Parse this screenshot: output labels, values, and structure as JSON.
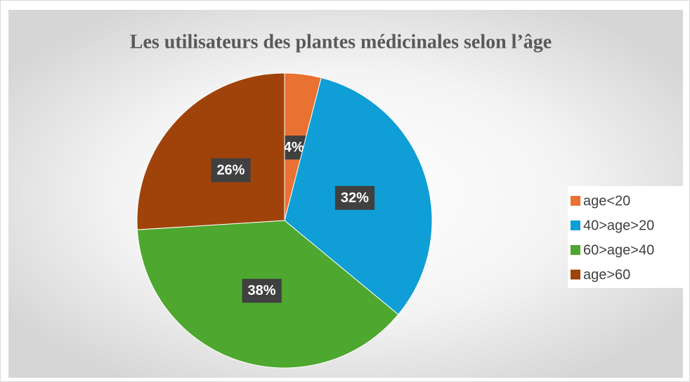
{
  "chart_data": {
    "type": "pie",
    "title": "Les utilisateurs des plantes médicinales selon l’âge",
    "categories": [
      "age<20",
      "40>age>20",
      "60>age>40",
      "age>60"
    ],
    "values": [
      4,
      32,
      38,
      26
    ],
    "value_labels": [
      "4%",
      "32%",
      "38%",
      "26%"
    ],
    "colors": [
      "#e97132",
      "#0f9ed5",
      "#4ea72e",
      "#a0430a"
    ],
    "legend": "right"
  }
}
